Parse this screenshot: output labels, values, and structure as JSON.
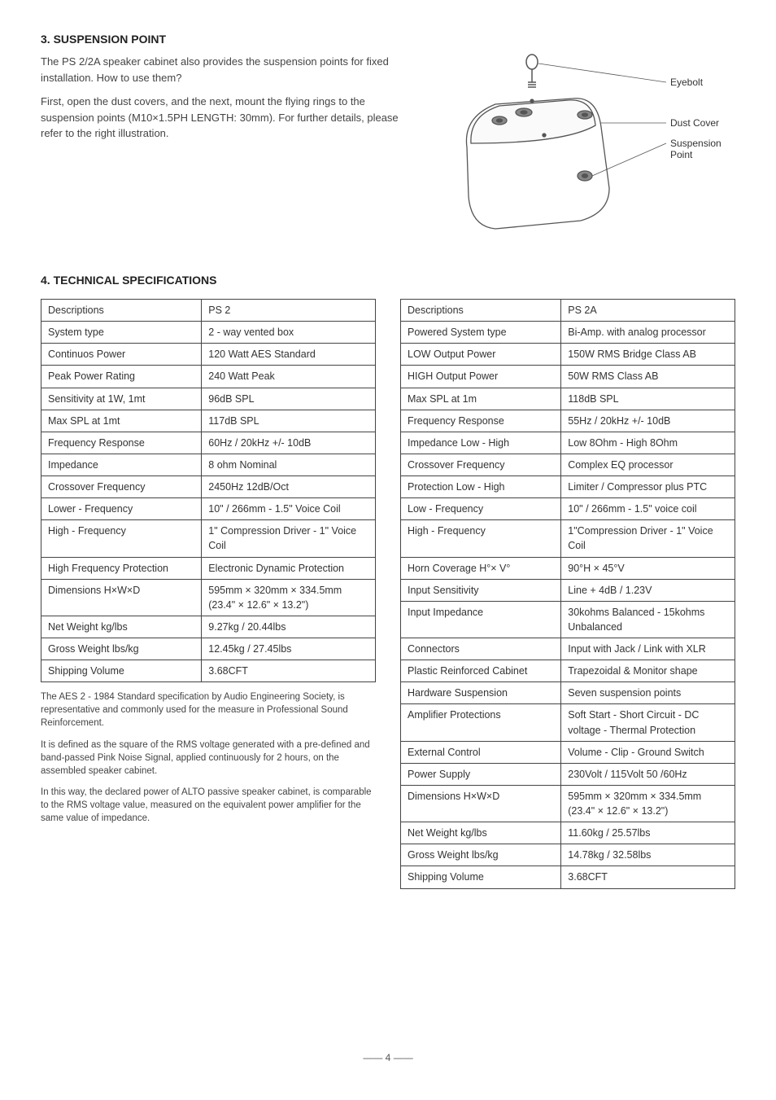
{
  "section3": {
    "title": "3. SUSPENSION POINT",
    "p1": "The PS 2/2A speaker cabinet also provides the suspension points for fixed installation. How to use them?",
    "p2": "First, open the dust covers, and the next, mount the flying rings to the suspension points (M10×1.5PH LENGTH: 30mm). For further details, please refer to the right illustration.",
    "callouts": {
      "eyebolt": "Eyebolt",
      "dustcover": "Dust Cover",
      "suspension": "Suspension Point"
    }
  },
  "section4": {
    "title": "4. TECHNICAL SPECIFICATIONS"
  },
  "tableLeft": {
    "rows": [
      [
        "Descriptions",
        "PS 2"
      ],
      [
        "System type",
        "2 - way vented box"
      ],
      [
        "Continuos Power",
        "120 Watt AES Standard"
      ],
      [
        "Peak Power Rating",
        "240 Watt Peak"
      ],
      [
        "Sensitivity at 1W, 1mt",
        "96dB SPL"
      ],
      [
        "Max SPL at 1mt",
        "117dB SPL"
      ],
      [
        "Frequency Response",
        "60Hz / 20kHz +/- 10dB"
      ],
      [
        "Impedance",
        "8 ohm Nominal"
      ],
      [
        "Crossover Frequency",
        "2450Hz  12dB/Oct"
      ],
      [
        "Lower - Frequency",
        "10\" / 266mm - 1.5\" Voice Coil"
      ],
      [
        "High - Frequency",
        "1\" Compression Driver - 1\" Voice Coil"
      ],
      [
        "High Frequency Protection",
        "Electronic Dynamic Protection"
      ],
      [
        "Dimensions H×W×D",
        "595mm × 320mm × 334.5mm (23.4\" × 12.6\" × 13.2\")"
      ],
      [
        "Net Weight kg/lbs",
        "9.27kg / 20.44lbs"
      ],
      [
        "Gross Weight lbs/kg",
        "12.45kg / 27.45lbs"
      ],
      [
        "Shipping Volume",
        "3.68CFT"
      ]
    ]
  },
  "tableRight": {
    "rows": [
      [
        "Descriptions",
        "PS 2A"
      ],
      [
        "Powered System type",
        "Bi-Amp. with analog processor"
      ],
      [
        "LOW Output Power",
        "150W RMS Bridge Class AB"
      ],
      [
        "HIGH Output Power",
        "50W RMS Class AB"
      ],
      [
        "Max SPL at 1m",
        "118dB SPL"
      ],
      [
        "Frequency Response",
        "55Hz / 20kHz +/- 10dB"
      ],
      [
        "Impedance Low - High",
        "Low 8Ohm - High 8Ohm"
      ],
      [
        "Crossover Frequency",
        "Complex EQ processor"
      ],
      [
        "Protection Low - High",
        "Limiter / Compressor plus PTC"
      ],
      [
        "Low - Frequency",
        "10\" / 266mm - 1.5\" voice coil"
      ],
      [
        "High - Frequency",
        "1\"Compression Driver - 1\" Voice Coil"
      ],
      [
        "Horn Coverage H°× V°",
        "90°H × 45°V"
      ],
      [
        "Input Sensitivity",
        "Line + 4dB / 1.23V"
      ],
      [
        "Input Impedance",
        "30kohms Balanced - 15kohms Unbalanced"
      ],
      [
        "Connectors",
        "Input with Jack / Link with XLR"
      ],
      [
        "Plastic Reinforced Cabinet",
        "Trapezoidal & Monitor shape"
      ],
      [
        "Hardware Suspension",
        "Seven suspension points"
      ],
      [
        "Amplifier Protections",
        "Soft Start - Short Circuit - DC voltage - Thermal Protection"
      ],
      [
        "External Control",
        "Volume - Clip - Ground Switch"
      ],
      [
        "Power Supply",
        "230Volt / 115Volt 50 /60Hz"
      ],
      [
        "Dimensions H×W×D",
        "595mm × 320mm × 334.5mm (23.4\" × 12.6\" × 13.2\")"
      ],
      [
        "Net Weight kg/lbs",
        "11.60kg / 25.57lbs"
      ],
      [
        "Gross Weight lbs/kg",
        "14.78kg / 32.58lbs"
      ],
      [
        "Shipping Volume",
        "3.68CFT"
      ]
    ]
  },
  "notes": {
    "p1": "The AES 2 - 1984 Standard specification by Audio Engineering Society, is representative and commonly used for the measure in Professional Sound Reinforcement.",
    "p2": "It is defined as the square of the RMS voltage generated with a pre-defined and band-passed Pink Noise Signal, applied continuously for 2 hours, on the assembled speaker cabinet.",
    "p3": "In this way, the declared power of ALTO passive speaker cabinet, is comparable to the RMS voltage value, measured on the equivalent power amplifier for the same value of impedance."
  },
  "footer": {
    "page": "4"
  }
}
